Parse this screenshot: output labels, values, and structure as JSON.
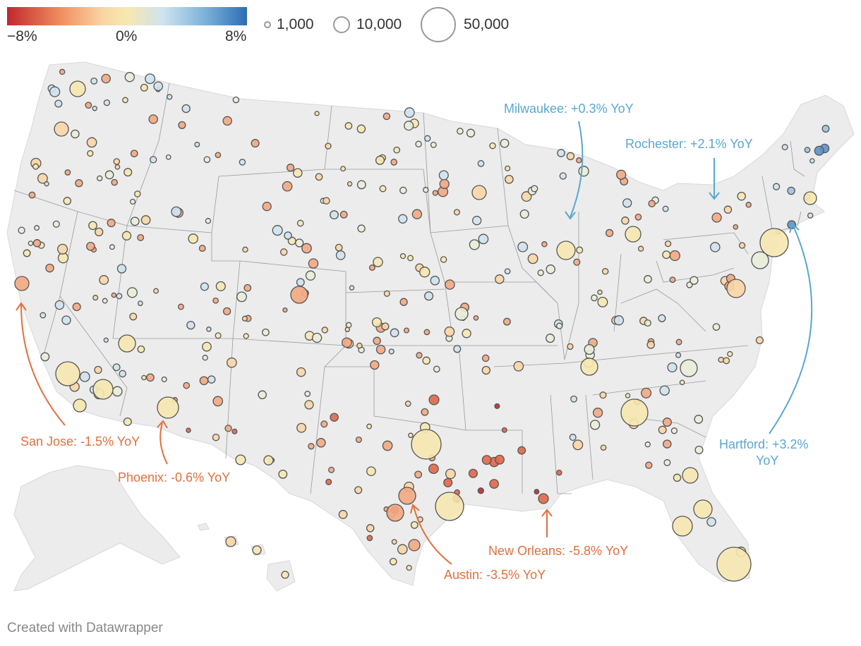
{
  "legend": {
    "color_scale": {
      "min_label": "−8%",
      "mid_label": "0%",
      "max_label": "8%",
      "stops": [
        "#c1272d",
        "#f08d5e",
        "#f9d6a5",
        "#f7e8b0",
        "#cfe3ef",
        "#7fb3d9",
        "#2d6db3"
      ]
    },
    "size_scale": [
      {
        "value": 1000,
        "label": "1,000"
      },
      {
        "value": 10000,
        "label": "10,000"
      },
      {
        "value": 50000,
        "label": "50,000"
      }
    ]
  },
  "annotations": [
    {
      "id": "milwaukee",
      "label": "Milwaukee: +0.3% YoY",
      "color": "#5aa7d1"
    },
    {
      "id": "rochester",
      "label": "Rochester: +2.1% YoY",
      "color": "#5aa7d1"
    },
    {
      "id": "hartford",
      "label": "Hartford: +3.2%",
      "label2": "YoY",
      "color": "#5aa7d1"
    },
    {
      "id": "san-jose",
      "label": "San Jose: -1.5% YoY",
      "color": "#e0703e"
    },
    {
      "id": "phoenix",
      "label": "Phoenix: -0.6% YoY",
      "color": "#e0703e"
    },
    {
      "id": "austin",
      "label": "Austin: -3.5% YoY",
      "color": "#e0703e"
    },
    {
      "id": "new-orleans",
      "label": "New Orleans: -5.8% YoY",
      "color": "#e0703e"
    }
  ],
  "colors": {
    "land": "#ececec",
    "state_border": "#9a9a9a",
    "bubble_stroke": "#555555",
    "positive_annotation": "#5aa7d1",
    "negative_annotation": "#e0703e"
  },
  "footer": "Created with Datawrapper"
}
